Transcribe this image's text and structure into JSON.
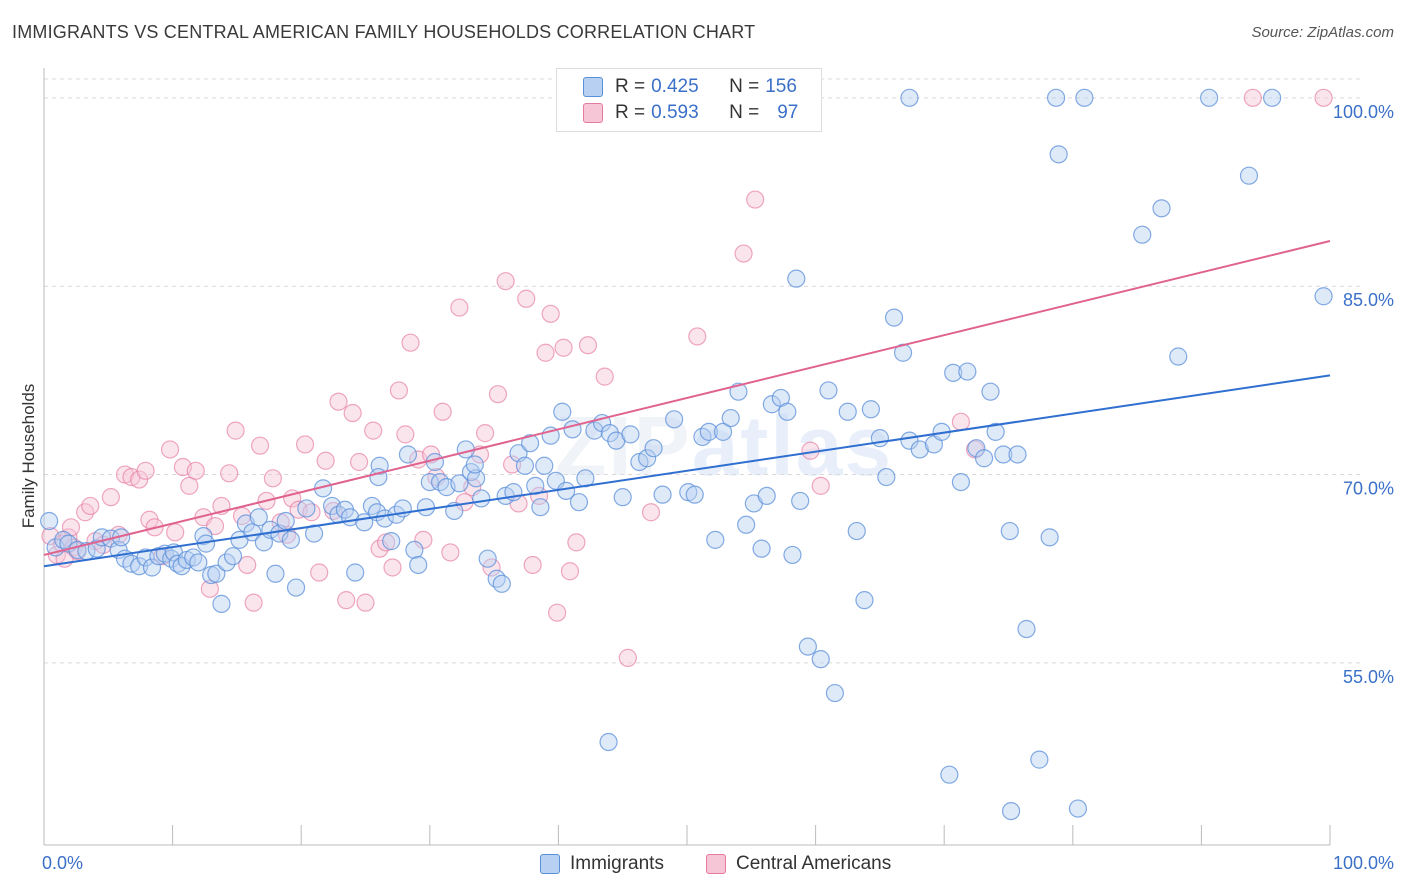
{
  "header": {
    "title": "IMMIGRANTS VS CENTRAL AMERICAN FAMILY HOUSEHOLDS CORRELATION CHART",
    "source": "Source: ZipAtlas.com"
  },
  "colors": {
    "immigrants": "#5b8fd9",
    "immigrants_fill": "#b8d0f2",
    "central": "#e57aa0",
    "central_fill": "#f6c6d6",
    "tick_label": "#3b70c8",
    "grid": "#d9d9d9"
  },
  "legend": {
    "immigrants": {
      "r_label": "R = ",
      "r_value": "0.425",
      "n_label": "N = ",
      "n_value": "156"
    },
    "central": {
      "r_label": "R = ",
      "r_value": "0.593",
      "n_label": "N = ",
      "n_value": "97"
    }
  },
  "watermark": {
    "zip": "ZIP",
    "atlas": "atlas"
  },
  "chart_data": {
    "type": "scatter",
    "title": "IMMIGRANTS VS CENTRAL AMERICAN FAMILY HOUSEHOLDS CORRELATION CHART",
    "xlabel": "",
    "ylabel": "Family Households",
    "xlim": [
      0,
      100
    ],
    "ylim": [
      40.5,
      101.5
    ],
    "x_tick_labels": [
      "0.0%",
      "100.0%"
    ],
    "y_ticks": [
      55.0,
      70.0,
      85.0,
      100.0
    ],
    "y_tick_labels": [
      "55.0%",
      "70.0%",
      "85.0%",
      "100.0%"
    ],
    "grid": "horizontal dashed",
    "legend_position": "bottom-center",
    "series": [
      {
        "name": "Immigrants",
        "r": 0.425,
        "n": 156,
        "trend": {
          "x": [
            0,
            100
          ],
          "y": [
            62.7,
            77.9
          ]
        },
        "points": [
          [
            0.4,
            66.3
          ],
          [
            0.9,
            64.2
          ],
          [
            1.5,
            64.8
          ],
          [
            1.9,
            64.5
          ],
          [
            2.6,
            64.0
          ],
          [
            3.3,
            63.9
          ],
          [
            4.1,
            64.1
          ],
          [
            4.5,
            65.0
          ],
          [
            5.2,
            64.9
          ],
          [
            5.8,
            64.0
          ],
          [
            6.3,
            63.3
          ],
          [
            6.8,
            62.9
          ],
          [
            7.4,
            62.7
          ],
          [
            7.9,
            63.4
          ],
          [
            8.4,
            62.6
          ],
          [
            8.9,
            63.5
          ],
          [
            9.4,
            63.7
          ],
          [
            9.9,
            63.3
          ],
          [
            10.1,
            63.8
          ],
          [
            10.4,
            62.9
          ],
          [
            10.7,
            62.7
          ],
          [
            11.1,
            63.2
          ],
          [
            11.6,
            63.4
          ],
          [
            12.0,
            63.0
          ],
          [
            12.4,
            65.1
          ],
          [
            12.6,
            64.5
          ],
          [
            13.0,
            62.0
          ],
          [
            13.4,
            62.1
          ],
          [
            13.8,
            59.7
          ],
          [
            14.2,
            63.0
          ],
          [
            14.7,
            63.5
          ],
          [
            15.2,
            64.8
          ],
          [
            15.7,
            66.1
          ],
          [
            16.2,
            65.4
          ],
          [
            16.7,
            66.6
          ],
          [
            17.1,
            64.6
          ],
          [
            17.6,
            65.6
          ],
          [
            18.0,
            62.1
          ],
          [
            18.3,
            65.3
          ],
          [
            18.8,
            66.3
          ],
          [
            19.2,
            64.8
          ],
          [
            19.6,
            61.0
          ],
          [
            20.4,
            67.3
          ],
          [
            21.0,
            65.3
          ],
          [
            21.7,
            68.9
          ],
          [
            22.4,
            67.5
          ],
          [
            22.9,
            66.8
          ],
          [
            23.4,
            67.2
          ],
          [
            23.8,
            66.6
          ],
          [
            24.2,
            62.2
          ],
          [
            24.9,
            66.2
          ],
          [
            25.5,
            67.5
          ],
          [
            25.9,
            67.0
          ],
          [
            26.1,
            70.7
          ],
          [
            26.5,
            66.5
          ],
          [
            27.0,
            64.7
          ],
          [
            27.4,
            66.8
          ],
          [
            27.9,
            67.3
          ],
          [
            28.3,
            71.6
          ],
          [
            28.8,
            64.0
          ],
          [
            29.1,
            62.8
          ],
          [
            29.7,
            67.4
          ],
          [
            30.0,
            69.4
          ],
          [
            30.4,
            71.0
          ],
          [
            30.8,
            69.4
          ],
          [
            31.3,
            69.0
          ],
          [
            31.9,
            67.1
          ],
          [
            32.3,
            69.3
          ],
          [
            32.8,
            72.0
          ],
          [
            33.2,
            70.2
          ],
          [
            33.6,
            69.7
          ],
          [
            34.0,
            68.1
          ],
          [
            34.5,
            63.3
          ],
          [
            35.2,
            61.7
          ],
          [
            35.6,
            61.3
          ],
          [
            35.9,
            68.3
          ],
          [
            36.5,
            68.6
          ],
          [
            36.9,
            71.7
          ],
          [
            37.4,
            70.7
          ],
          [
            37.8,
            72.5
          ],
          [
            38.2,
            69.1
          ],
          [
            38.6,
            67.4
          ],
          [
            38.9,
            70.7
          ],
          [
            39.4,
            73.1
          ],
          [
            39.8,
            69.5
          ],
          [
            40.3,
            75.0
          ],
          [
            40.6,
            68.7
          ],
          [
            41.1,
            73.6
          ],
          [
            41.6,
            67.8
          ],
          [
            42.1,
            69.7
          ],
          [
            42.8,
            73.5
          ],
          [
            43.4,
            74.1
          ],
          [
            44.0,
            73.3
          ],
          [
            44.5,
            72.7
          ],
          [
            45.0,
            68.2
          ],
          [
            45.6,
            73.2
          ],
          [
            46.3,
            71.0
          ],
          [
            46.9,
            71.3
          ],
          [
            47.4,
            72.1
          ],
          [
            48.1,
            68.4
          ],
          [
            49.0,
            74.4
          ],
          [
            50.1,
            68.6
          ],
          [
            50.6,
            68.4
          ],
          [
            51.2,
            73.0
          ],
          [
            51.7,
            73.4
          ],
          [
            52.2,
            64.8
          ],
          [
            52.8,
            73.4
          ],
          [
            53.4,
            74.5
          ],
          [
            54.0,
            76.6
          ],
          [
            54.6,
            66.0
          ],
          [
            55.2,
            67.7
          ],
          [
            55.8,
            64.1
          ],
          [
            56.2,
            68.3
          ],
          [
            56.6,
            75.6
          ],
          [
            57.3,
            76.1
          ],
          [
            57.8,
            75.0
          ],
          [
            58.2,
            63.6
          ],
          [
            58.8,
            67.9
          ],
          [
            59.4,
            56.3
          ],
          [
            60.4,
            55.3
          ],
          [
            61.0,
            76.7
          ],
          [
            61.5,
            52.6
          ],
          [
            62.5,
            75.0
          ],
          [
            63.2,
            65.5
          ],
          [
            63.8,
            60.0
          ],
          [
            64.3,
            75.2
          ],
          [
            65.0,
            72.9
          ],
          [
            65.5,
            69.8
          ],
          [
            66.1,
            82.5
          ],
          [
            66.8,
            79.7
          ],
          [
            67.3,
            72.7
          ],
          [
            68.1,
            72.0
          ],
          [
            69.2,
            72.4
          ],
          [
            69.8,
            73.4
          ],
          [
            70.7,
            78.1
          ],
          [
            71.3,
            69.4
          ],
          [
            71.8,
            78.2
          ],
          [
            72.5,
            72.1
          ],
          [
            73.1,
            71.3
          ],
          [
            73.6,
            76.6
          ],
          [
            74.0,
            73.4
          ],
          [
            74.6,
            71.6
          ],
          [
            75.1,
            65.5
          ],
          [
            75.7,
            71.6
          ],
          [
            76.4,
            57.7
          ],
          [
            77.4,
            47.3
          ],
          [
            78.2,
            65.0
          ],
          [
            80.4,
            43.4
          ],
          [
            70.4,
            46.1
          ],
          [
            75.2,
            43.2
          ],
          [
            67.3,
            100.0
          ],
          [
            78.7,
            100.0
          ],
          [
            80.9,
            100.0
          ],
          [
            90.6,
            100.0
          ],
          [
            95.5,
            100.0
          ],
          [
            88.2,
            79.4
          ],
          [
            99.5,
            84.2
          ],
          [
            93.7,
            93.8
          ],
          [
            86.9,
            91.2
          ],
          [
            85.4,
            89.1
          ],
          [
            78.9,
            95.5
          ],
          [
            58.5,
            85.6
          ],
          [
            43.9,
            48.7
          ],
          [
            33.5,
            70.8
          ],
          [
            26.0,
            69.8
          ],
          [
            6.0,
            65.0
          ]
        ]
      },
      {
        "name": "Central Americans",
        "r": 0.593,
        "n": 97,
        "trend": {
          "x": [
            0,
            100
          ],
          "y": [
            63.6,
            88.6
          ]
        },
        "points": [
          [
            0.5,
            65.1
          ],
          [
            1.0,
            63.6
          ],
          [
            1.4,
            64.5
          ],
          [
            1.9,
            65.0
          ],
          [
            2.3,
            64.2
          ],
          [
            2.6,
            63.9
          ],
          [
            3.2,
            67.0
          ],
          [
            3.6,
            67.5
          ],
          [
            4.0,
            64.7
          ],
          [
            4.6,
            64.4
          ],
          [
            5.2,
            68.2
          ],
          [
            5.8,
            65.2
          ],
          [
            6.3,
            70.0
          ],
          [
            6.8,
            69.8
          ],
          [
            7.4,
            69.6
          ],
          [
            7.9,
            70.3
          ],
          [
            8.2,
            66.4
          ],
          [
            8.6,
            65.8
          ],
          [
            9.2,
            63.5
          ],
          [
            9.8,
            72.0
          ],
          [
            10.2,
            65.4
          ],
          [
            10.8,
            70.6
          ],
          [
            11.3,
            69.1
          ],
          [
            11.8,
            70.3
          ],
          [
            12.4,
            66.6
          ],
          [
            12.9,
            60.9
          ],
          [
            13.3,
            65.9
          ],
          [
            13.8,
            67.5
          ],
          [
            14.4,
            70.1
          ],
          [
            14.9,
            73.5
          ],
          [
            15.4,
            66.7
          ],
          [
            15.8,
            62.8
          ],
          [
            16.3,
            59.8
          ],
          [
            16.8,
            72.3
          ],
          [
            17.3,
            67.9
          ],
          [
            17.8,
            69.7
          ],
          [
            18.4,
            66.2
          ],
          [
            18.9,
            65.2
          ],
          [
            19.3,
            68.1
          ],
          [
            19.8,
            67.2
          ],
          [
            20.3,
            72.4
          ],
          [
            20.8,
            67.0
          ],
          [
            21.4,
            62.2
          ],
          [
            21.9,
            71.1
          ],
          [
            22.5,
            67.1
          ],
          [
            22.9,
            75.8
          ],
          [
            23.5,
            60.0
          ],
          [
            24.0,
            74.9
          ],
          [
            24.5,
            71.0
          ],
          [
            25.0,
            59.8
          ],
          [
            25.6,
            73.5
          ],
          [
            26.1,
            64.1
          ],
          [
            26.6,
            64.6
          ],
          [
            27.1,
            62.6
          ],
          [
            27.6,
            76.7
          ],
          [
            28.1,
            73.2
          ],
          [
            28.5,
            80.5
          ],
          [
            29.1,
            71.2
          ],
          [
            29.5,
            64.8
          ],
          [
            30.1,
            71.6
          ],
          [
            30.5,
            69.8
          ],
          [
            31.0,
            75.0
          ],
          [
            31.6,
            63.8
          ],
          [
            32.3,
            83.3
          ],
          [
            32.7,
            67.8
          ],
          [
            33.3,
            69.0
          ],
          [
            33.9,
            71.6
          ],
          [
            34.3,
            73.3
          ],
          [
            34.8,
            62.6
          ],
          [
            35.3,
            76.4
          ],
          [
            35.9,
            85.4
          ],
          [
            36.4,
            70.8
          ],
          [
            36.9,
            67.7
          ],
          [
            37.5,
            84.0
          ],
          [
            38.0,
            62.8
          ],
          [
            38.5,
            68.3
          ],
          [
            39.0,
            79.7
          ],
          [
            39.4,
            82.8
          ],
          [
            39.9,
            59.0
          ],
          [
            40.4,
            80.1
          ],
          [
            40.9,
            62.3
          ],
          [
            41.4,
            64.6
          ],
          [
            42.3,
            80.3
          ],
          [
            43.6,
            77.8
          ],
          [
            45.4,
            55.4
          ],
          [
            47.2,
            67.0
          ],
          [
            54.4,
            87.6
          ],
          [
            55.3,
            91.9
          ],
          [
            59.6,
            71.9
          ],
          [
            60.4,
            69.1
          ],
          [
            71.3,
            74.2
          ],
          [
            72.4,
            72.0
          ],
          [
            94.0,
            100.0
          ],
          [
            99.5,
            100.0
          ],
          [
            2.1,
            65.8
          ],
          [
            1.6,
            63.3
          ],
          [
            50.8,
            81.0
          ]
        ]
      }
    ]
  },
  "footer_legend": {
    "immigrants_label": "Immigrants",
    "central_label": "Central Americans"
  }
}
